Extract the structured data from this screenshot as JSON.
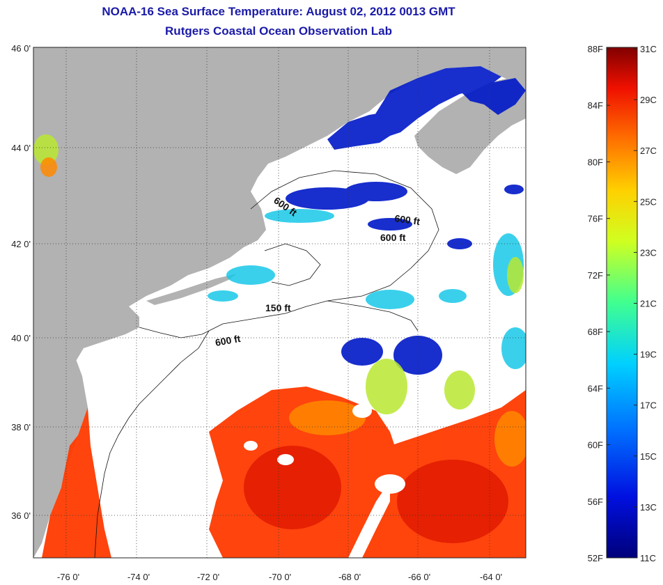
{
  "title": "NOAA-16 Sea Surface Temperature:  August 02, 2012 0013 GMT",
  "subtitle": "Rutgers Coastal Ocean Observation Lab",
  "lat_labels": [
    "46 0'",
    "44 0'",
    "42 0'",
    "40 0'",
    "38 0'",
    "36 0'"
  ],
  "lon_labels": [
    "-76 0'",
    "-74 0'",
    "-72 0'",
    "-70 0'",
    "-68 0'",
    "-66 0'",
    "-64 0'"
  ],
  "contour_labels": [
    "600 ft",
    "600 ft",
    "600 ft",
    "150 ft",
    "600 ft"
  ],
  "colorbar": {
    "fahrenheit": [
      "88F",
      "84F",
      "80F",
      "76F",
      "72F",
      "68F",
      "64F",
      "60F",
      "56F",
      "52F"
    ],
    "celsius": [
      "31C",
      "29C",
      "27C",
      "25C",
      "23C",
      "21C",
      "19C",
      "17C",
      "15C",
      "13C",
      "11C"
    ]
  },
  "colors": {
    "title": "#1a1aa8",
    "land": "#b2b2b2",
    "cloud": "#ffffff",
    "warm": "#ff3000",
    "cold": "#0010c0"
  }
}
